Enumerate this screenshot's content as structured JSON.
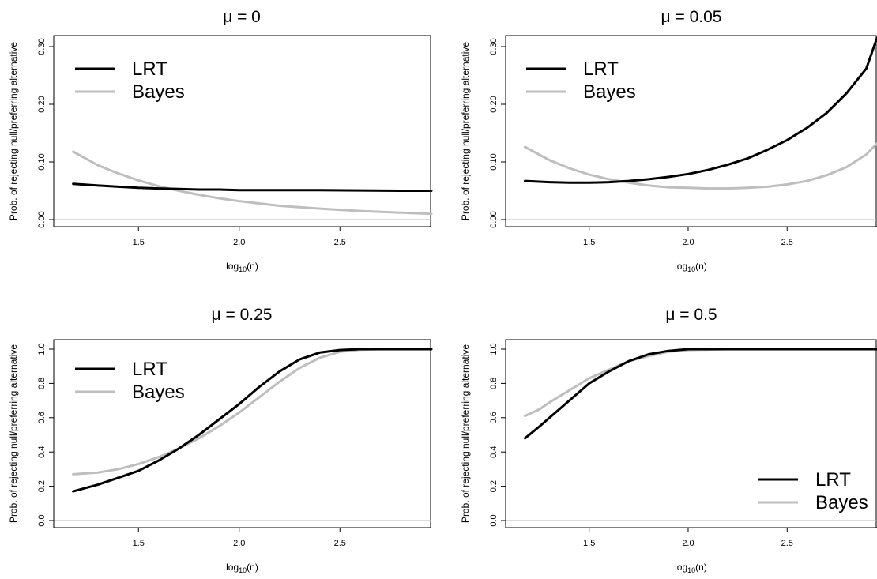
{
  "chart_data": [
    {
      "type": "line",
      "title": "μ = 0",
      "xlabel": "log10(n)",
      "ylabel": "Prob. of rejecting null/preferring alternative",
      "xlim": [
        1.15,
        2.95
      ],
      "ylim": [
        0,
        0.3
      ],
      "xticks": [
        "1.5",
        "2.0",
        "2.5"
      ],
      "yticks": [
        "0.00",
        "0.10",
        "0.20",
        "0.30"
      ],
      "reference_line": 0,
      "legend_position": "top-left",
      "series": [
        {
          "name": "LRT",
          "color": "#000000",
          "x": [
            1.176,
            1.3,
            1.4,
            1.5,
            1.6,
            1.7,
            1.8,
            1.9,
            2.0,
            2.2,
            2.4,
            2.6,
            2.8,
            2.954
          ],
          "y": [
            0.062,
            0.059,
            0.057,
            0.055,
            0.054,
            0.053,
            0.052,
            0.052,
            0.051,
            0.051,
            0.051,
            0.0505,
            0.05,
            0.05
          ]
        },
        {
          "name": "Bayes",
          "color": "#bebebe",
          "x": [
            1.176,
            1.3,
            1.4,
            1.5,
            1.6,
            1.7,
            1.8,
            1.9,
            2.0,
            2.2,
            2.4,
            2.6,
            2.8,
            2.954
          ],
          "y": [
            0.118,
            0.094,
            0.08,
            0.068,
            0.058,
            0.05,
            0.043,
            0.037,
            0.032,
            0.024,
            0.019,
            0.015,
            0.012,
            0.01
          ]
        }
      ]
    },
    {
      "type": "line",
      "title": "μ = 0.05",
      "xlabel": "log10(n)",
      "ylabel": "Prob. of rejecting null/preferring alternative",
      "xlim": [
        1.15,
        2.95
      ],
      "ylim": [
        0,
        0.3
      ],
      "xticks": [
        "1.5",
        "2.0",
        "2.5"
      ],
      "yticks": [
        "0.00",
        "0.10",
        "0.20",
        "0.30"
      ],
      "reference_line": 0,
      "legend_position": "top-left",
      "series": [
        {
          "name": "LRT",
          "color": "#000000",
          "x": [
            1.176,
            1.3,
            1.4,
            1.5,
            1.6,
            1.7,
            1.8,
            1.9,
            2.0,
            2.1,
            2.2,
            2.3,
            2.4,
            2.5,
            2.6,
            2.7,
            2.8,
            2.9,
            2.954
          ],
          "y": [
            0.067,
            0.065,
            0.064,
            0.064,
            0.065,
            0.067,
            0.07,
            0.074,
            0.079,
            0.086,
            0.095,
            0.106,
            0.121,
            0.138,
            0.159,
            0.185,
            0.219,
            0.262,
            0.315
          ]
        },
        {
          "name": "Bayes",
          "color": "#bebebe",
          "x": [
            1.176,
            1.3,
            1.4,
            1.5,
            1.6,
            1.7,
            1.8,
            1.9,
            2.0,
            2.1,
            2.2,
            2.3,
            2.4,
            2.5,
            2.6,
            2.7,
            2.8,
            2.9,
            2.954
          ],
          "y": [
            0.126,
            0.103,
            0.089,
            0.078,
            0.07,
            0.064,
            0.059,
            0.056,
            0.055,
            0.054,
            0.054,
            0.055,
            0.057,
            0.061,
            0.067,
            0.077,
            0.091,
            0.113,
            0.132
          ]
        }
      ]
    },
    {
      "type": "line",
      "title": "μ = 0.25",
      "xlabel": "log10(n)",
      "ylabel": "Prob. of rejecting null/preferring alternative",
      "xlim": [
        1.15,
        2.95
      ],
      "ylim": [
        0,
        1.0
      ],
      "xticks": [
        "1.5",
        "2.0",
        "2.5"
      ],
      "yticks": [
        "0.0",
        "0.2",
        "0.4",
        "0.6",
        "0.8",
        "1.0"
      ],
      "reference_line": 0,
      "legend_position": "top-left",
      "series": [
        {
          "name": "LRT",
          "color": "#000000",
          "x": [
            1.176,
            1.3,
            1.4,
            1.5,
            1.6,
            1.7,
            1.8,
            1.9,
            2.0,
            2.1,
            2.2,
            2.3,
            2.4,
            2.5,
            2.6,
            2.7,
            2.8,
            2.954
          ],
          "y": [
            0.17,
            0.21,
            0.25,
            0.29,
            0.35,
            0.42,
            0.5,
            0.59,
            0.68,
            0.78,
            0.87,
            0.94,
            0.98,
            0.995,
            1.0,
            1.0,
            1.0,
            1.0
          ]
        },
        {
          "name": "Bayes",
          "color": "#bebebe",
          "x": [
            1.176,
            1.3,
            1.4,
            1.5,
            1.6,
            1.7,
            1.8,
            1.9,
            2.0,
            2.1,
            2.2,
            2.3,
            2.4,
            2.5,
            2.6,
            2.7,
            2.8,
            2.954
          ],
          "y": [
            0.27,
            0.28,
            0.3,
            0.33,
            0.37,
            0.42,
            0.48,
            0.55,
            0.63,
            0.72,
            0.81,
            0.89,
            0.95,
            0.985,
            0.997,
            1.0,
            1.0,
            1.0
          ]
        }
      ]
    },
    {
      "type": "line",
      "title": "μ = 0.5",
      "xlabel": "log10(n)",
      "ylabel": "Prob. of rejecting null/preferring alternative",
      "xlim": [
        1.15,
        2.95
      ],
      "ylim": [
        0,
        1.0
      ],
      "xticks": [
        "1.5",
        "2.0",
        "2.5"
      ],
      "yticks": [
        "0.0",
        "0.2",
        "0.4",
        "0.6",
        "0.8",
        "1.0"
      ],
      "reference_line": 0,
      "legend_position": "bottom-right",
      "series": [
        {
          "name": "LRT",
          "color": "#000000",
          "x": [
            1.176,
            1.25,
            1.3,
            1.4,
            1.5,
            1.6,
            1.7,
            1.8,
            1.9,
            2.0,
            2.2,
            2.5,
            2.954
          ],
          "y": [
            0.48,
            0.55,
            0.6,
            0.7,
            0.8,
            0.87,
            0.93,
            0.97,
            0.99,
            1.0,
            1.0,
            1.0,
            1.0
          ]
        },
        {
          "name": "Bayes",
          "color": "#bebebe",
          "x": [
            1.176,
            1.25,
            1.3,
            1.4,
            1.5,
            1.6,
            1.7,
            1.8,
            1.9,
            2.0,
            2.2,
            2.5,
            2.954
          ],
          "y": [
            0.61,
            0.65,
            0.69,
            0.76,
            0.83,
            0.88,
            0.93,
            0.96,
            0.985,
            0.995,
            1.0,
            1.0,
            1.0
          ]
        }
      ]
    }
  ]
}
